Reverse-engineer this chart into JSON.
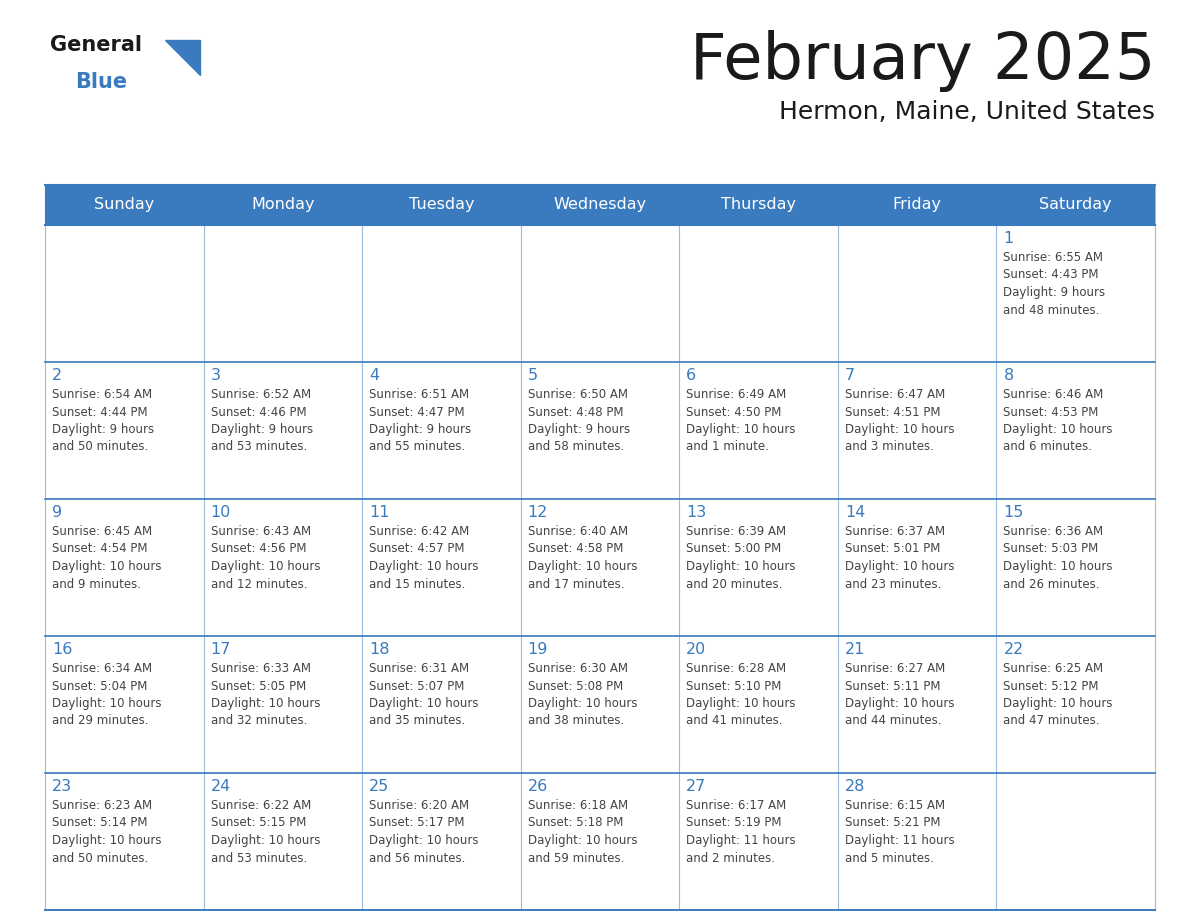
{
  "title": "February 2025",
  "subtitle": "Hermon, Maine, United States",
  "days_of_week": [
    "Sunday",
    "Monday",
    "Tuesday",
    "Wednesday",
    "Thursday",
    "Friday",
    "Saturday"
  ],
  "header_bg": "#3a7abf",
  "header_text": "#ffffff",
  "cell_bg": "#ffffff",
  "border_color": "#3a7abf",
  "day_num_color": "#3a7abf",
  "text_color": "#444444",
  "logo_general_color": "#1a1a1a",
  "logo_blue_color": "#3a7abf",
  "calendar_data": [
    [
      null,
      null,
      null,
      null,
      null,
      null,
      1
    ],
    [
      2,
      3,
      4,
      5,
      6,
      7,
      8
    ],
    [
      9,
      10,
      11,
      12,
      13,
      14,
      15
    ],
    [
      16,
      17,
      18,
      19,
      20,
      21,
      22
    ],
    [
      23,
      24,
      25,
      26,
      27,
      28,
      null
    ]
  ],
  "sunrise_data": {
    "1": "6:55 AM",
    "2": "6:54 AM",
    "3": "6:52 AM",
    "4": "6:51 AM",
    "5": "6:50 AM",
    "6": "6:49 AM",
    "7": "6:47 AM",
    "8": "6:46 AM",
    "9": "6:45 AM",
    "10": "6:43 AM",
    "11": "6:42 AM",
    "12": "6:40 AM",
    "13": "6:39 AM",
    "14": "6:37 AM",
    "15": "6:36 AM",
    "16": "6:34 AM",
    "17": "6:33 AM",
    "18": "6:31 AM",
    "19": "6:30 AM",
    "20": "6:28 AM",
    "21": "6:27 AM",
    "22": "6:25 AM",
    "23": "6:23 AM",
    "24": "6:22 AM",
    "25": "6:20 AM",
    "26": "6:18 AM",
    "27": "6:17 AM",
    "28": "6:15 AM"
  },
  "sunset_data": {
    "1": "4:43 PM",
    "2": "4:44 PM",
    "3": "4:46 PM",
    "4": "4:47 PM",
    "5": "4:48 PM",
    "6": "4:50 PM",
    "7": "4:51 PM",
    "8": "4:53 PM",
    "9": "4:54 PM",
    "10": "4:56 PM",
    "11": "4:57 PM",
    "12": "4:58 PM",
    "13": "5:00 PM",
    "14": "5:01 PM",
    "15": "5:03 PM",
    "16": "5:04 PM",
    "17": "5:05 PM",
    "18": "5:07 PM",
    "19": "5:08 PM",
    "20": "5:10 PM",
    "21": "5:11 PM",
    "22": "5:12 PM",
    "23": "5:14 PM",
    "24": "5:15 PM",
    "25": "5:17 PM",
    "26": "5:18 PM",
    "27": "5:19 PM",
    "28": "5:21 PM"
  },
  "daylight_data": {
    "1": "9 hours\nand 48 minutes.",
    "2": "9 hours\nand 50 minutes.",
    "3": "9 hours\nand 53 minutes.",
    "4": "9 hours\nand 55 minutes.",
    "5": "9 hours\nand 58 minutes.",
    "6": "10 hours\nand 1 minute.",
    "7": "10 hours\nand 3 minutes.",
    "8": "10 hours\nand 6 minutes.",
    "9": "10 hours\nand 9 minutes.",
    "10": "10 hours\nand 12 minutes.",
    "11": "10 hours\nand 15 minutes.",
    "12": "10 hours\nand 17 minutes.",
    "13": "10 hours\nand 20 minutes.",
    "14": "10 hours\nand 23 minutes.",
    "15": "10 hours\nand 26 minutes.",
    "16": "10 hours\nand 29 minutes.",
    "17": "10 hours\nand 32 minutes.",
    "18": "10 hours\nand 35 minutes.",
    "19": "10 hours\nand 38 minutes.",
    "20": "10 hours\nand 41 minutes.",
    "21": "10 hours\nand 44 minutes.",
    "22": "10 hours\nand 47 minutes.",
    "23": "10 hours\nand 50 minutes.",
    "24": "10 hours\nand 53 minutes.",
    "25": "10 hours\nand 56 minutes.",
    "26": "10 hours\nand 59 minutes.",
    "27": "11 hours\nand 2 minutes.",
    "28": "11 hours\nand 5 minutes."
  }
}
